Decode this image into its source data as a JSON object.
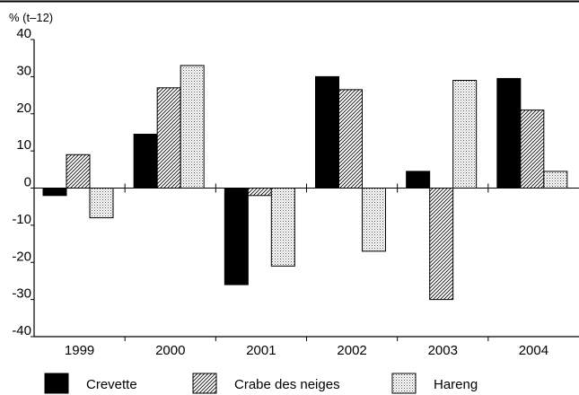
{
  "chart_data": {
    "type": "bar",
    "unit_label": "% (t–12)",
    "categories": [
      "1999",
      "2000",
      "2001",
      "2002",
      "2003",
      "2004"
    ],
    "series": [
      {
        "name": "Crevette",
        "values": [
          -2,
          14.5,
          -26,
          30,
          4.5,
          29.5
        ],
        "pattern": "solid",
        "color": "#000000"
      },
      {
        "name": "Crabe des neiges",
        "values": [
          9,
          27,
          -2,
          26.5,
          -30,
          21
        ],
        "pattern": "hatch",
        "color": "#000000"
      },
      {
        "name": "Hareng",
        "values": [
          -8,
          33,
          -21,
          -17,
          29,
          4.5
        ],
        "pattern": "dots",
        "color": "#000000"
      }
    ],
    "ylim": [
      -40,
      40
    ],
    "yticks": [
      -40,
      -30,
      -20,
      -10,
      0,
      10,
      20,
      30,
      40
    ],
    "grid": false,
    "legend_position": "bottom"
  }
}
